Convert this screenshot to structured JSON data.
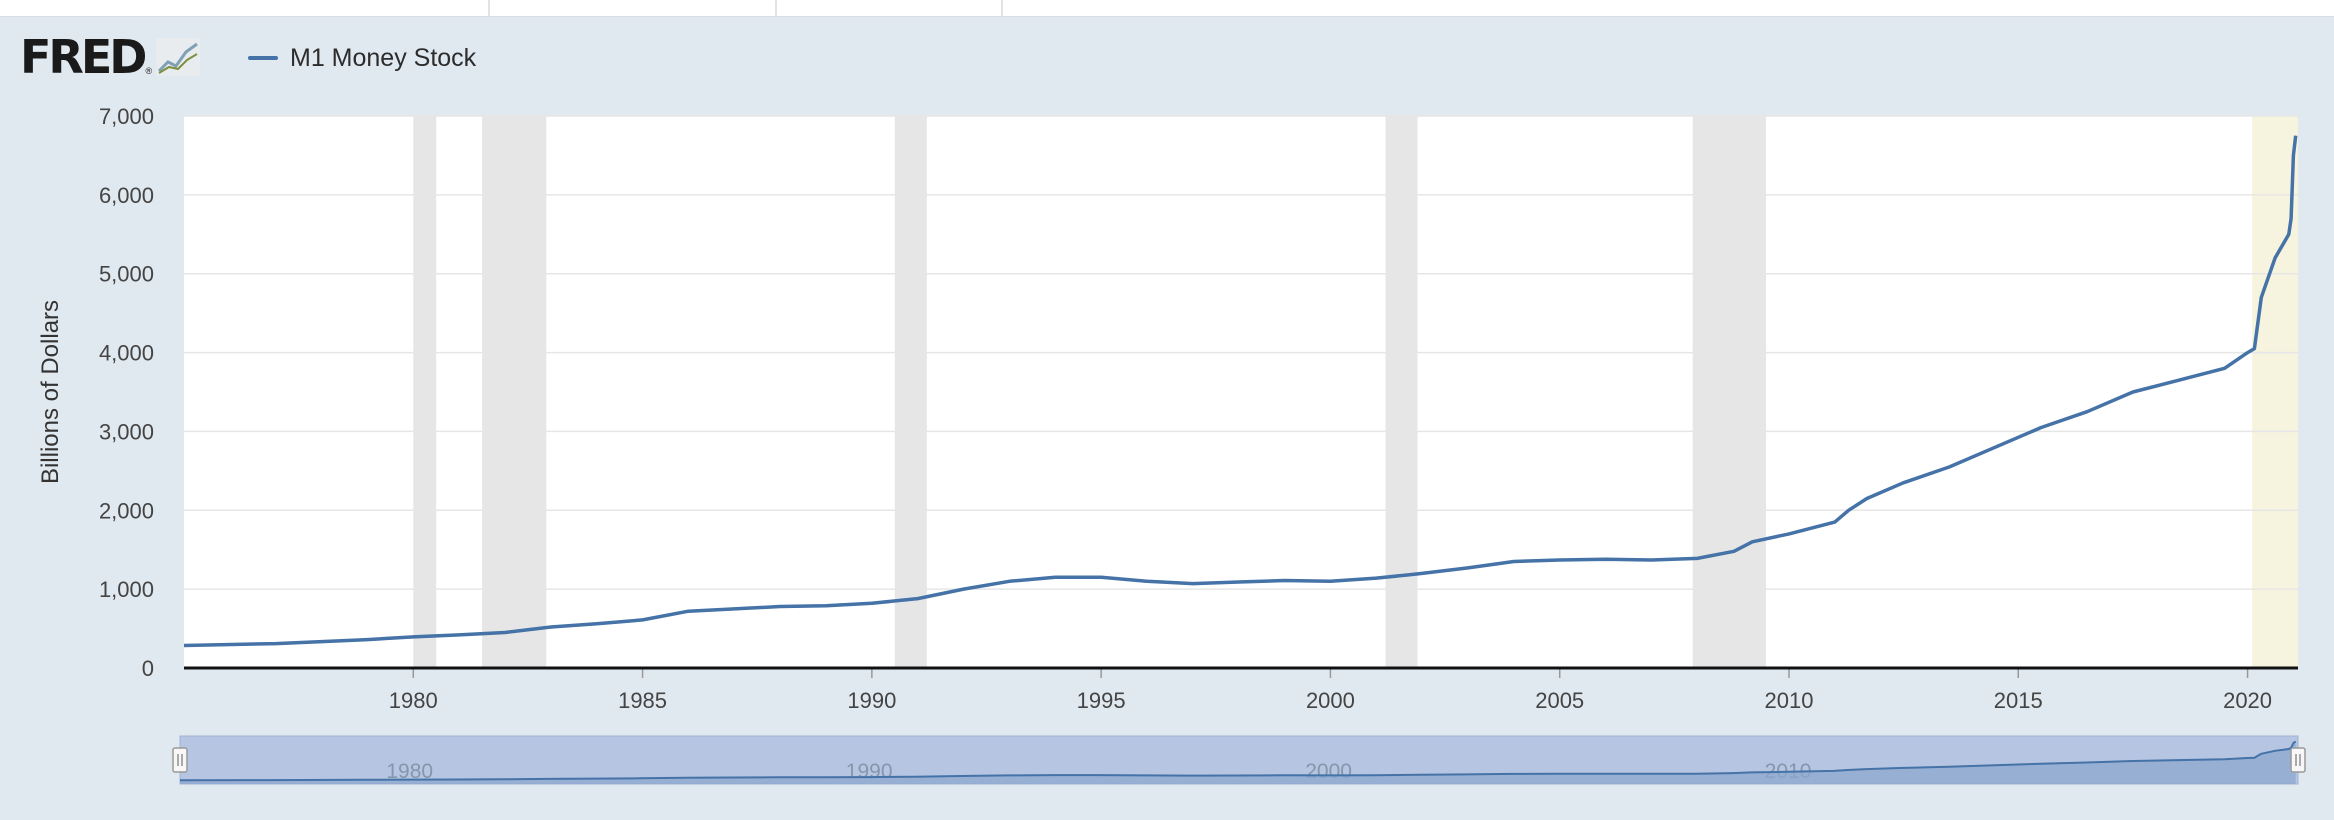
{
  "header": {
    "logo_text": "FRED",
    "logo_reg_mark": "®"
  },
  "legend": {
    "series_label": "M1 Money Stock"
  },
  "colors": {
    "series": "#4572a7",
    "recession": "#e6e6e6",
    "highlight": "#f6f4de",
    "navigator_fill": "#b6c6e2",
    "navigator_line": "#4572a7",
    "background": "#e1e9f0",
    "plot_bg": "#ffffff",
    "grid": "#e6e6e6",
    "axis_text": "#444444"
  },
  "chart_data": {
    "type": "line",
    "title": "",
    "xlabel": "",
    "ylabel": "Billions of Dollars",
    "xlim": [
      1975.0,
      2021.1
    ],
    "ylim": [
      0,
      7000
    ],
    "y_ticks": [
      0,
      1000,
      2000,
      3000,
      4000,
      5000,
      6000,
      7000
    ],
    "y_tick_labels": [
      "0",
      "1,000",
      "2,000",
      "3,000",
      "4,000",
      "5,000",
      "6,000",
      "7,000"
    ],
    "x_ticks": [
      1980,
      1985,
      1990,
      1995,
      2000,
      2005,
      2010,
      2015,
      2020
    ],
    "x_tick_labels": [
      "1980",
      "1985",
      "1990",
      "1995",
      "2000",
      "2005",
      "2010",
      "2015",
      "2020"
    ],
    "grid": true,
    "legend_position": "top-left",
    "recessions": [
      [
        1980.0,
        1980.5
      ],
      [
        1981.5,
        1982.9
      ],
      [
        1990.5,
        1991.2
      ],
      [
        2001.2,
        2001.9
      ],
      [
        2007.9,
        2009.5
      ]
    ],
    "highlight_band": [
      2020.1,
      2021.1
    ],
    "series": [
      {
        "name": "M1 Money Stock",
        "x": [
          1975.0,
          1977.0,
          1979.0,
          1980.0,
          1981.0,
          1982.0,
          1983.0,
          1984.0,
          1985.0,
          1986.0,
          1987.0,
          1988.0,
          1989.0,
          1990.0,
          1991.0,
          1992.0,
          1993.0,
          1994.0,
          1995.0,
          1996.0,
          1997.0,
          1998.0,
          1999.0,
          2000.0,
          2001.0,
          2001.7,
          2002.0,
          2003.0,
          2004.0,
          2005.0,
          2006.0,
          2007.0,
          2008.0,
          2008.8,
          2009.2,
          2010.0,
          2011.0,
          2011.3,
          2011.7,
          2012.5,
          2013.5,
          2014.5,
          2015.5,
          2016.5,
          2017.5,
          2018.5,
          2019.5,
          2020.0,
          2020.15,
          2020.3,
          2020.6,
          2020.9,
          2020.95,
          2021.0,
          2021.05
        ],
        "values": [
          285,
          310,
          360,
          395,
          420,
          450,
          520,
          560,
          610,
          720,
          750,
          780,
          790,
          820,
          880,
          1000,
          1100,
          1150,
          1150,
          1100,
          1070,
          1090,
          1110,
          1100,
          1140,
          1180,
          1200,
          1270,
          1350,
          1370,
          1380,
          1370,
          1390,
          1480,
          1600,
          1700,
          1850,
          2000,
          2150,
          2350,
          2550,
          2800,
          3050,
          3250,
          3500,
          3650,
          3800,
          4000,
          4050,
          4700,
          5200,
          5500,
          5700,
          6500,
          6750
        ]
      }
    ]
  },
  "navigator": {
    "x_tick_labels": [
      "1980",
      "1990",
      "2000",
      "2010"
    ],
    "x_ticks": [
      1980,
      1990,
      2000,
      2010
    ]
  }
}
